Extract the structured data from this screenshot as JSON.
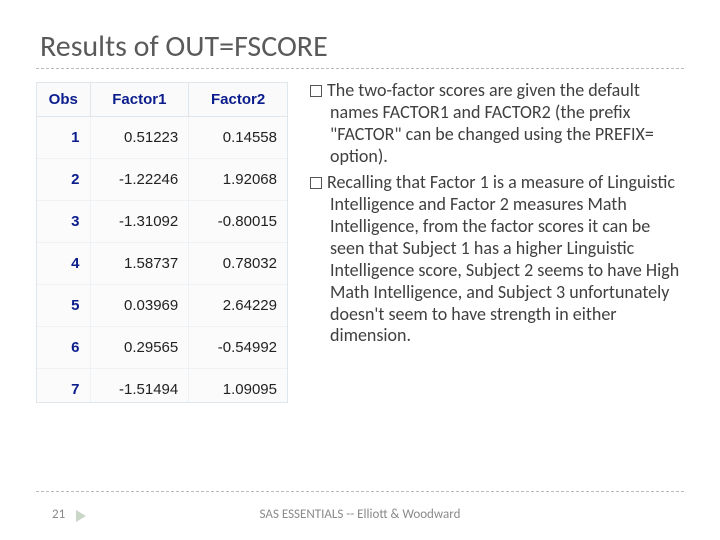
{
  "title": "Results of OUT=FSCORE",
  "table": {
    "columns": [
      "Obs",
      "Factor1",
      "Factor2"
    ],
    "header_color": "#0b1d8c",
    "obs_color": "#0b1d8c",
    "border_color": "#dfe6ec",
    "background": "#fbfbfb",
    "fontsize": 15,
    "col_align": [
      "right",
      "right",
      "right"
    ],
    "rows": [
      [
        "1",
        "0.51223",
        "0.14558"
      ],
      [
        "2",
        "-1.22246",
        "1.92068"
      ],
      [
        "3",
        "-1.31092",
        "-0.80015"
      ],
      [
        "4",
        "1.58737",
        "0.78032"
      ],
      [
        "5",
        "0.03969",
        "2.64229"
      ],
      [
        "6",
        "0.29565",
        "-0.54992"
      ],
      [
        "7",
        "-1.51494",
        "1.09095"
      ]
    ],
    "last_row_truncated": true
  },
  "bullets": [
    "The two-factor scores are given the default names FACTOR1 and FACTOR2 (the prefix \"FACTOR\" can be changed using the PREFIX= option).",
    "Recalling that Factor 1 is a measure of Linguistic Intelligence and Factor 2 measures Math Intelligence, from the factor scores it can be seen that Subject 1 has a higher Linguistic Intelligence score, Subject 2 seems to have High Math Intelligence, and Subject 3 unfortunately doesn't seem to have strength in either dimension."
  ],
  "footer": {
    "page": "21",
    "center": "SAS ESSENTIALS -- Elliott & Woodward"
  },
  "style": {
    "title_fontsize": 30,
    "title_color": "#5a5a5a",
    "body_fontsize": 18,
    "body_color": "#404040",
    "divider_color": "#bbbbbb",
    "footer_color": "#8a8a8a",
    "arrow_color": "#c9d7c7",
    "background_color": "#ffffff"
  }
}
